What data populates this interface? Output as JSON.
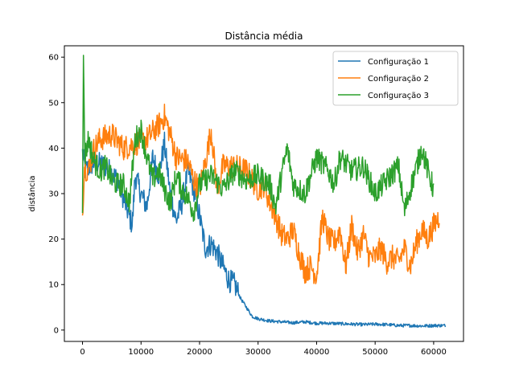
{
  "chart_data": {
    "type": "line",
    "title": "Distância média",
    "xlabel": "",
    "ylabel": "distância",
    "xlim": [
      -3100,
      65100
    ],
    "ylim": [
      -2.5,
      62.5
    ],
    "xticks": [
      0,
      10000,
      20000,
      30000,
      40000,
      50000,
      60000
    ],
    "yticks": [
      0,
      10,
      20,
      30,
      40,
      50,
      60
    ],
    "grid": false,
    "legend_position": "top-right",
    "series": [
      {
        "name": "Configuração 1",
        "color": "#1f77b4",
        "x": [
          0,
          500,
          2000,
          4000,
          6000,
          7000,
          8000,
          8500,
          9000,
          10000,
          11000,
          12000,
          13000,
          14000,
          15000,
          16000,
          17000,
          18000,
          19000,
          20000,
          21000,
          22000,
          23000,
          24000,
          25000,
          26000,
          27000,
          28000,
          29000,
          30000,
          32000,
          34000,
          36000,
          38000,
          40000,
          42000,
          44000,
          46000,
          48000,
          50000,
          52000,
          54000,
          56000,
          58000,
          60000,
          62000
        ],
        "y": [
          39,
          35,
          37,
          36,
          33,
          29,
          25,
          23,
          34,
          30,
          27,
          38,
          34,
          41,
          30,
          24,
          28,
          35,
          31,
          25,
          18,
          19,
          17,
          14,
          11,
          10,
          7,
          5,
          3,
          2.5,
          2,
          1.8,
          1.6,
          1.8,
          1.5,
          1.5,
          1.4,
          1.3,
          1.2,
          1.3,
          1.2,
          1.0,
          1.0,
          0.9,
          1.0,
          1.0
        ]
      },
      {
        "name": "Configuração 2",
        "color": "#ff7f0e",
        "x": [
          0,
          300,
          1000,
          2000,
          3000,
          5000,
          7000,
          9000,
          11000,
          13000,
          14000,
          15000,
          16000,
          18000,
          19000,
          20000,
          21000,
          22000,
          23000,
          24000,
          26000,
          28000,
          30000,
          31000,
          32000,
          33000,
          34000,
          35000,
          36000,
          37000,
          38000,
          39000,
          40000,
          41000,
          42000,
          43000,
          44000,
          45000,
          46000,
          47000,
          48000,
          49000,
          50000,
          51000,
          52000,
          53000,
          54000,
          55000,
          56000,
          57000,
          58000,
          59000,
          60000,
          61000
        ],
        "y": [
          25,
          36,
          35,
          40,
          42,
          43,
          40,
          41,
          42,
          45,
          47,
          43,
          38,
          37,
          33,
          31,
          37,
          44,
          31,
          36,
          36,
          35,
          31,
          32,
          28,
          25,
          21,
          20,
          22,
          17,
          13,
          14,
          12,
          25,
          20,
          19,
          22,
          14,
          23,
          17,
          21,
          16,
          16,
          18,
          15,
          16,
          15,
          18,
          14,
          19,
          22,
          20,
          23,
          25
        ]
      },
      {
        "name": "Configuração 3",
        "color": "#2ca02c",
        "x": [
          0,
          150,
          400,
          1000,
          2000,
          3000,
          4000,
          5000,
          6000,
          7000,
          8000,
          9000,
          10000,
          11000,
          12000,
          13000,
          14000,
          15000,
          16000,
          17000,
          18000,
          19000,
          20000,
          22000,
          24000,
          26000,
          28000,
          30000,
          32000,
          33000,
          34000,
          35000,
          36000,
          38000,
          40000,
          42000,
          43000,
          44000,
          46000,
          48000,
          50000,
          52000,
          54000,
          55000,
          56000,
          58000,
          59000,
          60000
        ],
        "y": [
          28,
          59.5,
          38,
          42,
          37,
          35,
          36,
          33,
          32,
          32,
          28,
          42,
          44,
          38,
          33,
          35,
          31,
          28,
          34,
          31,
          29,
          26,
          32,
          34,
          31,
          35,
          33,
          34,
          32,
          27,
          34,
          40,
          32,
          30,
          38,
          35,
          32,
          38,
          35,
          36,
          30,
          33,
          36,
          26,
          31,
          40,
          35,
          31
        ]
      }
    ]
  }
}
